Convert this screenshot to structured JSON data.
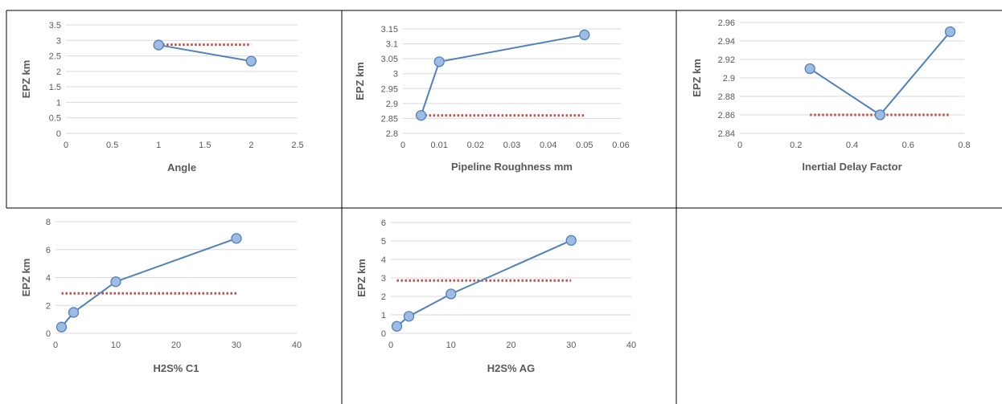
{
  "colors": {
    "series_line": "#4f81bd",
    "marker_fill": "#9dbbe3",
    "reference_line": "#c0504d",
    "gridline": "#d9d9d9",
    "axis_text": "#595959",
    "cell_border": "#000000"
  },
  "chart_data": [
    {
      "type": "scatter",
      "title": "",
      "xlabel": "Angle",
      "ylabel": "EPZ km",
      "xlim": [
        0,
        2.5
      ],
      "ylim": [
        0,
        3.5
      ],
      "xticks": [
        "0",
        "0.5",
        "1",
        "1.5",
        "2",
        "2.5"
      ],
      "yticks": [
        "0",
        "0.5",
        "1",
        "1.5",
        "2",
        "2.5",
        "3",
        "3.5"
      ],
      "grid": true,
      "series": [
        {
          "x": [
            1,
            2
          ],
          "y": [
            2.85,
            2.33
          ],
          "style": "line-marker"
        }
      ],
      "reference_line": {
        "x": [
          1,
          2
        ],
        "y": 2.86,
        "style": "dotted"
      }
    },
    {
      "type": "scatter",
      "title": "",
      "xlabel": "Pipeline Roughness mm",
      "ylabel": "EPZ km",
      "xlim": [
        0,
        0.06
      ],
      "ylim": [
        2.8,
        3.15
      ],
      "xticks": [
        "0",
        "0.01",
        "0.02",
        "0.03",
        "0.04",
        "0.05",
        "0.06"
      ],
      "yticks": [
        "2.8",
        "2.85",
        "2.9",
        "2.95",
        "3",
        "3.05",
        "3.1",
        "3.15"
      ],
      "grid": true,
      "series": [
        {
          "x": [
            0.005,
            0.01,
            0.05
          ],
          "y": [
            2.86,
            3.04,
            3.13
          ],
          "style": "line-marker"
        }
      ],
      "reference_line": {
        "x": [
          0.005,
          0.05
        ],
        "y": 2.86,
        "style": "dotted"
      }
    },
    {
      "type": "scatter",
      "title": "",
      "xlabel": "Inertial Delay Factor",
      "ylabel": "EPZ km",
      "xlim": [
        0,
        0.8
      ],
      "ylim": [
        2.84,
        2.96
      ],
      "xticks": [
        "0",
        "0.2",
        "0.4",
        "0.6",
        "0.8"
      ],
      "yticks": [
        "2.84",
        "2.86",
        "2.88",
        "2.9",
        "2.92",
        "2.94",
        "2.96"
      ],
      "grid": true,
      "series": [
        {
          "x": [
            0.25,
            0.5,
            0.75
          ],
          "y": [
            2.91,
            2.86,
            2.95
          ],
          "style": "line-marker"
        }
      ],
      "reference_line": {
        "x": [
          0.25,
          0.75
        ],
        "y": 2.86,
        "style": "dotted"
      }
    },
    {
      "type": "scatter",
      "title": "",
      "xlabel": "H2S% C1",
      "ylabel": "EPZ km",
      "xlim": [
        0,
        40
      ],
      "ylim": [
        0,
        8
      ],
      "xticks": [
        "0",
        "10",
        "20",
        "30",
        "40"
      ],
      "yticks": [
        "0",
        "2",
        "4",
        "6",
        "8"
      ],
      "grid": true,
      "series": [
        {
          "x": [
            1,
            3,
            10,
            30
          ],
          "y": [
            0.45,
            1.5,
            3.7,
            6.8
          ],
          "style": "line-marker"
        }
      ],
      "reference_line": {
        "x": [
          1,
          30
        ],
        "y": 2.86,
        "style": "dotted"
      }
    },
    {
      "type": "scatter",
      "title": "",
      "xlabel": "H2S% AG",
      "ylabel": "EPZ km",
      "xlim": [
        0,
        40
      ],
      "ylim": [
        0,
        6
      ],
      "xticks": [
        "0",
        "10",
        "20",
        "30",
        "40"
      ],
      "yticks": [
        "0",
        "1",
        "2",
        "3",
        "4",
        "5",
        "6"
      ],
      "grid": true,
      "series": [
        {
          "x": [
            1,
            3,
            10,
            30
          ],
          "y": [
            0.38,
            0.92,
            2.13,
            5.03
          ],
          "style": "line-marker"
        }
      ],
      "reference_line": {
        "x": [
          1,
          30
        ],
        "y": 2.86,
        "style": "dotted"
      }
    }
  ]
}
